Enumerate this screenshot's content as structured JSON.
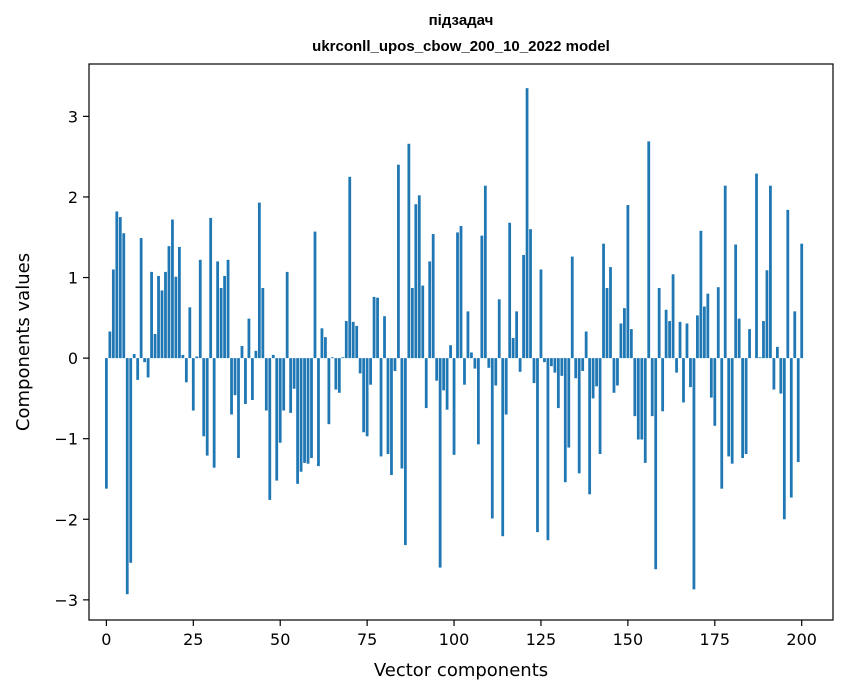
{
  "chart_data": {
    "type": "bar",
    "title_line1": "підзадач",
    "title_line2": "ukrconll_upos_cbow_200_10_2022 model",
    "xlabel": "Vector components",
    "ylabel": "Components values",
    "xlim": [
      -5,
      209
    ],
    "ylim": [
      -3.25,
      3.65
    ],
    "xticks": [
      0,
      25,
      50,
      75,
      100,
      125,
      150,
      175,
      200
    ],
    "yticks": [
      -3,
      -2,
      -1,
      0,
      1,
      2,
      3
    ],
    "ytick_labels": [
      "−3",
      "−2",
      "−1",
      "0",
      "1",
      "2",
      "3"
    ],
    "bar_color": "#1f77b4",
    "values": [
      -1.62,
      0.33,
      1.1,
      1.82,
      1.75,
      1.55,
      -2.93,
      -2.54,
      0.05,
      -0.27,
      1.49,
      -0.05,
      -0.24,
      1.07,
      0.3,
      1.02,
      0.84,
      1.07,
      1.39,
      1.72,
      1.01,
      1.38,
      0.04,
      -0.3,
      0.63,
      -0.65,
      0.02,
      1.22,
      -0.97,
      -1.21,
      1.74,
      -1.36,
      1.2,
      0.87,
      1.02,
      1.22,
      -0.7,
      -0.46,
      -1.24,
      0.15,
      -0.57,
      0.49,
      -0.52,
      0.09,
      1.93,
      0.87,
      -0.65,
      -1.76,
      0.04,
      -1.52,
      -1.05,
      -0.65,
      1.07,
      -0.68,
      -0.38,
      -1.56,
      -1.41,
      -1.3,
      -1.31,
      -1.24,
      1.57,
      -1.34,
      0.37,
      0.26,
      -0.82,
      0.01,
      -0.39,
      -0.43,
      0.01,
      0.46,
      2.25,
      0.45,
      0.4,
      -0.19,
      -0.92,
      -0.97,
      -0.33,
      0.76,
      0.75,
      -1.22,
      0.52,
      -1.19,
      -1.45,
      -0.16,
      2.4,
      -1.37,
      -2.32,
      2.66,
      0.87,
      1.91,
      2.02,
      0.9,
      -0.62,
      1.2,
      1.54,
      -0.28,
      -2.6,
      -0.4,
      -0.64,
      0.16,
      -1.2,
      1.56,
      1.64,
      -0.33,
      0.58,
      0.07,
      -0.13,
      -1.07,
      1.52,
      2.14,
      -0.12,
      -1.99,
      -0.34,
      0.73,
      -2.21,
      -0.7,
      1.68,
      0.25,
      0.58,
      -0.17,
      1.28,
      3.35,
      1.6,
      -0.31,
      -2.16,
      1.1,
      -0.05,
      -2.26,
      -0.1,
      -0.18,
      -0.62,
      -0.22,
      -1.54,
      -1.11,
      1.26,
      -0.25,
      -1.43,
      -0.16,
      0.33,
      -1.69,
      -0.5,
      -0.35,
      -1.19,
      1.42,
      0.87,
      1.13,
      -0.43,
      -0.34,
      0.43,
      0.62,
      1.9,
      0.36,
      -0.72,
      -1.01,
      -1.01,
      -1.3,
      2.69,
      -0.72,
      -2.62,
      0.87,
      -0.66,
      0.6,
      0.46,
      1.04,
      -0.18,
      0.45,
      -0.55,
      0.43,
      -0.36,
      -2.87,
      0.53,
      1.58,
      0.64,
      0.8,
      -0.49,
      -0.84,
      0.88,
      -1.62,
      2.14,
      -1.22,
      -1.31,
      1.41,
      0.49,
      -1.24,
      -1.19,
      0.36,
      0.0,
      2.29,
      0.01,
      0.46,
      1.09,
      2.14,
      -0.39,
      0.14,
      -0.44,
      -2.0,
      1.84,
      -1.73,
      0.58,
      -1.29,
      1.42
    ]
  }
}
